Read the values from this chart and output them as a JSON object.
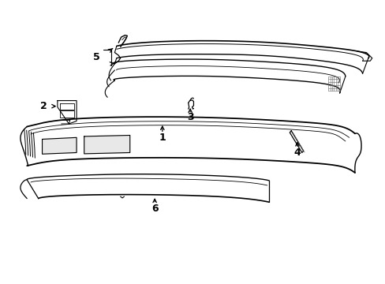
{
  "bg_color": "#ffffff",
  "line_color": "#000000",
  "fig_width": 4.89,
  "fig_height": 3.6,
  "dpi": 100,
  "part5_upper_top": {
    "x": [
      0.295,
      0.36,
      0.5,
      0.65,
      0.82,
      0.92,
      0.96
    ],
    "y": [
      0.825,
      0.845,
      0.85,
      0.845,
      0.835,
      0.82,
      0.8
    ]
  },
  "part5_upper_bot": {
    "x": [
      0.295,
      0.36,
      0.5,
      0.65,
      0.8,
      0.88,
      0.89
    ],
    "y": [
      0.78,
      0.798,
      0.8,
      0.793,
      0.78,
      0.76,
      0.74
    ]
  },
  "part5_lower_top": {
    "x": [
      0.295,
      0.36,
      0.5,
      0.65,
      0.8,
      0.87,
      0.88
    ],
    "y": [
      0.74,
      0.752,
      0.754,
      0.748,
      0.735,
      0.718,
      0.7
    ]
  },
  "part5_lower_bot": {
    "x": [
      0.295,
      0.36,
      0.5,
      0.65,
      0.8,
      0.865,
      0.87
    ],
    "y": [
      0.705,
      0.715,
      0.718,
      0.712,
      0.698,
      0.682,
      0.665
    ]
  },
  "part1_top": {
    "x": [
      0.07,
      0.15,
      0.3,
      0.5,
      0.7,
      0.87,
      0.93
    ],
    "y": [
      0.535,
      0.555,
      0.565,
      0.56,
      0.55,
      0.535,
      0.51
    ]
  },
  "part1_bot": {
    "x": [
      0.07,
      0.15,
      0.3,
      0.5,
      0.7,
      0.87,
      0.925
    ],
    "y": [
      0.395,
      0.408,
      0.415,
      0.41,
      0.402,
      0.39,
      0.368
    ]
  },
  "part6_top": {
    "x": [
      0.07,
      0.15,
      0.3,
      0.5,
      0.65,
      0.72
    ],
    "y": [
      0.335,
      0.345,
      0.35,
      0.347,
      0.34,
      0.33
    ]
  },
  "part6_bot": {
    "x": [
      0.095,
      0.18,
      0.35,
      0.5,
      0.62,
      0.695
    ],
    "y": [
      0.27,
      0.278,
      0.282,
      0.278,
      0.27,
      0.255
    ]
  }
}
